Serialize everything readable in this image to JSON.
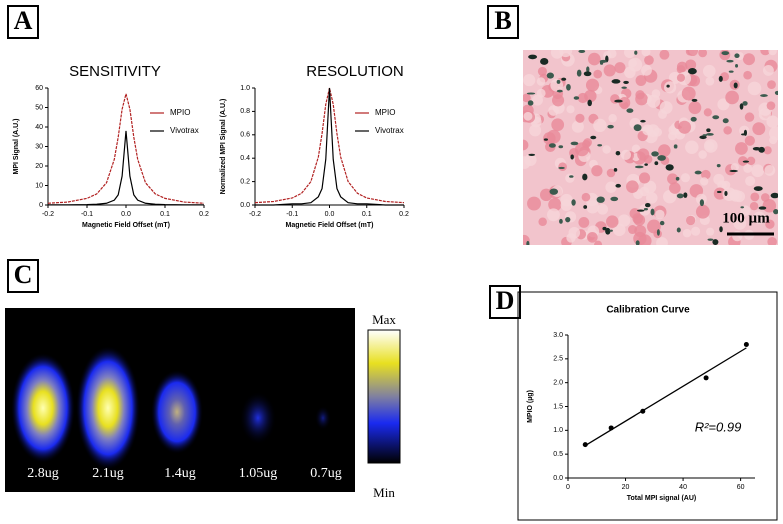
{
  "panels": {
    "a": "A",
    "b": "B",
    "c": "C",
    "d": "D"
  },
  "panel_b": {
    "scale_bar": "100 µm"
  },
  "panel_c": {
    "labels": [
      "2.8ug",
      "2.1ug",
      "1.4ug",
      "1.05ug",
      "0.7ug"
    ],
    "colorbar_max": "Max",
    "colorbar_min": "Min"
  },
  "chart_data": [
    {
      "type": "line",
      "title": "SENSITIVITY",
      "x_label": "Magnetic Field Offset (mT)",
      "y_label": "MPI Signal (A.U.)",
      "x": [
        -0.2,
        -0.15,
        -0.1,
        -0.075,
        -0.05,
        -0.03,
        -0.02,
        -0.01,
        0,
        0.01,
        0.02,
        0.03,
        0.05,
        0.075,
        0.1,
        0.15,
        0.2
      ],
      "series": [
        {
          "name": "MPIO",
          "color": "#b22222",
          "values": [
            0.9,
            1.5,
            3.4,
            5.7,
            11.4,
            23.4,
            34.8,
            49.1,
            57,
            49.1,
            34.8,
            23.4,
            11.4,
            5.7,
            3.4,
            1.5,
            0.9
          ]
        },
        {
          "name": "Vivotrax",
          "color": "#000000",
          "values": [
            0.1,
            0.1,
            0.2,
            0.4,
            0.9,
            2.5,
            5.2,
            14.8,
            38,
            14.8,
            5.2,
            2.5,
            0.9,
            0.4,
            0.2,
            0.1,
            0.1
          ]
        }
      ],
      "xlim": [
        -0.2,
        0.2
      ],
      "xticks": [
        -0.2,
        -0.1,
        {
          "value": 0,
          "label": "0.0"
        },
        0.1,
        0.2
      ],
      "ylim": [
        0,
        60
      ],
      "yticks": [
        0,
        10,
        20,
        30,
        40,
        50,
        60
      ],
      "legend": "upper right"
    },
    {
      "type": "line",
      "title": "RESOLUTION",
      "x_label": "Magnetic Field Offset (mT)",
      "y_label": "Normalized MPI Signal (A.U.)",
      "x": [
        -0.2,
        -0.15,
        -0.1,
        -0.075,
        -0.05,
        -0.03,
        -0.02,
        -0.01,
        0,
        0.01,
        0.02,
        0.03,
        0.05,
        0.075,
        0.1,
        0.15,
        0.2
      ],
      "series": [
        {
          "name": "MPIO",
          "color": "#b22222",
          "values": [
            0.02,
            0.03,
            0.06,
            0.1,
            0.2,
            0.41,
            0.61,
            0.86,
            1,
            0.86,
            0.61,
            0.41,
            0.2,
            0.1,
            0.06,
            0.03,
            0.02
          ]
        },
        {
          "name": "Vivotrax",
          "color": "#000000",
          "values": [
            0,
            0,
            0.01,
            0.01,
            0.02,
            0.07,
            0.14,
            0.39,
            1,
            0.39,
            0.14,
            0.07,
            0.02,
            0.01,
            0.01,
            0,
            0
          ]
        }
      ],
      "xlim": [
        -0.2,
        0.2
      ],
      "xticks": [
        -0.2,
        -0.1,
        {
          "value": 0,
          "label": "0.0"
        },
        0.1,
        0.2
      ],
      "ylim": [
        0,
        1
      ],
      "yticks": [
        {
          "value": 0,
          "label": "0.0"
        },
        0.2,
        0.4,
        0.6,
        0.8,
        {
          "value": 1,
          "label": "1.0"
        }
      ],
      "legend": "upper right"
    },
    {
      "type": "scatter",
      "title": "Calibration Curve",
      "x_label": "Total MPI signal (AU)",
      "y_label": "MPIO (µg)",
      "x": [
        6,
        15,
        26,
        48,
        62
      ],
      "values": [
        0.7,
        1.05,
        1.4,
        2.1,
        2.8
      ],
      "color": "#000000",
      "fit_line": {
        "x": [
          6,
          62
        ],
        "values": [
          0.68,
          2.73
        ]
      },
      "annotation": "R²=0.99",
      "xlim": [
        0,
        65
      ],
      "xticks": [
        0,
        20,
        40,
        60
      ],
      "ylim": [
        0,
        3
      ],
      "yticks": [
        {
          "value": 0,
          "label": "0.0"
        },
        0.5,
        {
          "value": 1,
          "label": "1.0"
        },
        1.5,
        {
          "value": 2,
          "label": "2.0"
        },
        2.5,
        {
          "value": 3,
          "label": "3.0"
        }
      ]
    }
  ]
}
